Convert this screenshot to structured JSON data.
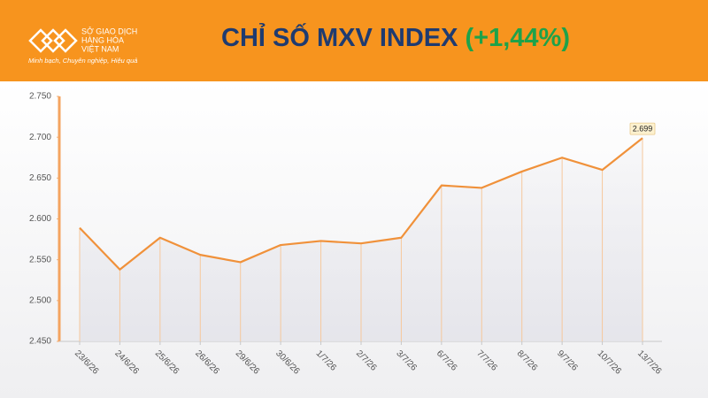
{
  "header": {
    "logo_lines": [
      "SỞ GIAO DỊCH",
      "HÀNG HÓA",
      "VIỆT NAM"
    ],
    "tagline": "Minh bạch, Chuyên nghiệp, Hiệu quả"
  },
  "chart_data": {
    "type": "line",
    "title": "CHỈ SỐ MXV INDEX",
    "annotation": "(+1,44%)",
    "categories": [
      "23/6/26",
      "24/6/26",
      "25/6/26",
      "26/6/26",
      "29/6/26",
      "30/6/26",
      "1/7/26",
      "2/7/26",
      "3/7/26",
      "6/7/26",
      "7/7/26",
      "8/7/26",
      "9/7/26",
      "10/7/26",
      "13/7/26"
    ],
    "values": [
      2589,
      2538,
      2577,
      2556,
      2547,
      2568,
      2573,
      2570,
      2577,
      2641,
      2638,
      2658,
      2675,
      2660,
      2699
    ],
    "value_labels": [
      null,
      null,
      null,
      null,
      null,
      null,
      null,
      null,
      null,
      null,
      null,
      null,
      null,
      null,
      "2.699"
    ],
    "color": "#f0913a",
    "ylim": [
      2450,
      2750
    ],
    "yticks": [
      {
        "value": 2450,
        "label": "2.450"
      },
      {
        "value": 2500,
        "label": "2.500"
      },
      {
        "value": 2550,
        "label": "2.550"
      },
      {
        "value": 2600,
        "label": "2.600"
      },
      {
        "value": 2650,
        "label": "2.650"
      },
      {
        "value": 2700,
        "label": "2.700"
      },
      {
        "value": 2750,
        "label": "2.750"
      }
    ],
    "drop_lines": true
  }
}
